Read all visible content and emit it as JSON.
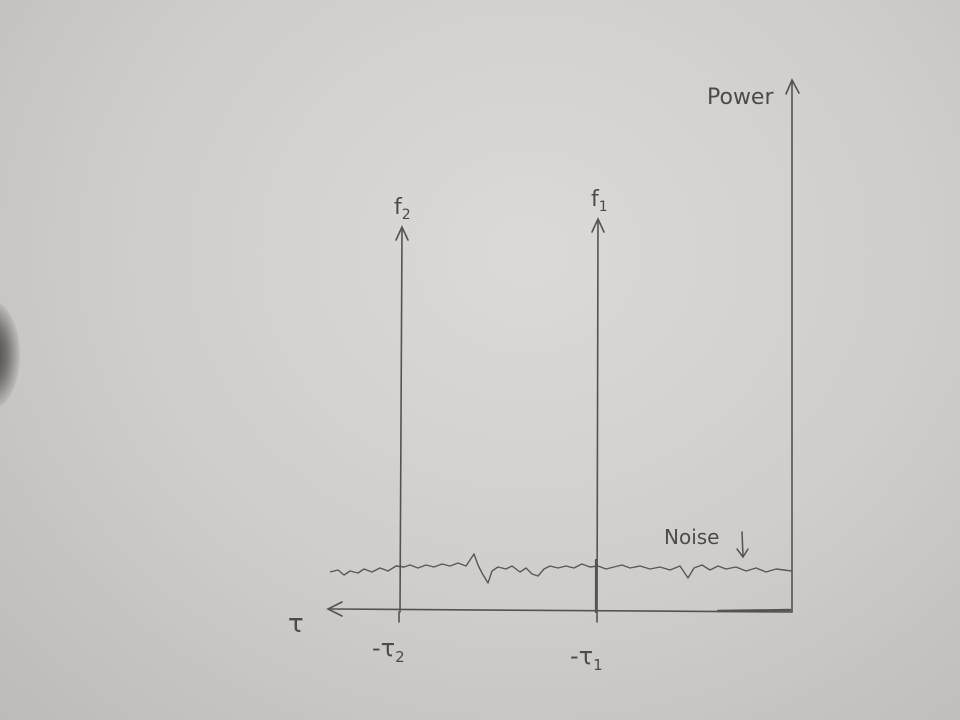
{
  "labels": {
    "y_axis": "Power",
    "x_axis": "τ",
    "peak_1": "f",
    "peak_1_sub": "1",
    "peak_2": "f",
    "peak_2_sub": "2",
    "tick_1": "-τ",
    "tick_1_sub": "1",
    "tick_2": "-τ",
    "tick_2_sub": "2",
    "noise": "Noise"
  },
  "colors": {
    "paper": "#d4d2d0",
    "pencil": "#4d4b49"
  }
}
